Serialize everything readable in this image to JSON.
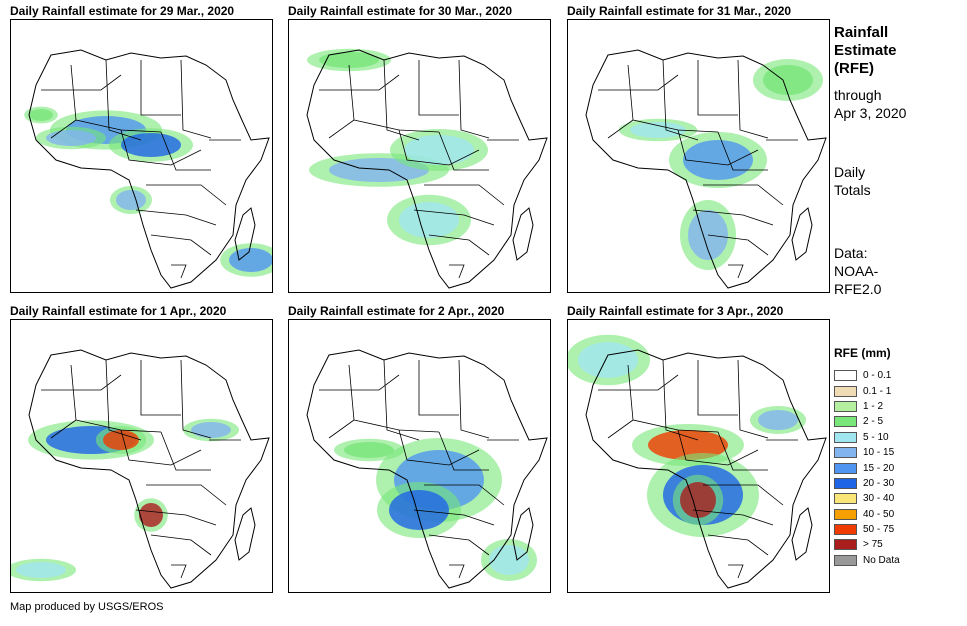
{
  "panels": [
    {
      "title": "Daily Rainfall estimate for 29 Mar., 2020"
    },
    {
      "title": "Daily Rainfall estimate for 30 Mar., 2020"
    },
    {
      "title": "Daily Rainfall estimate for 31 Mar., 2020"
    },
    {
      "title": "Daily Rainfall estimate for 1 Apr., 2020"
    },
    {
      "title": "Daily Rainfall estimate for 2 Apr., 2020"
    },
    {
      "title": "Daily Rainfall estimate for 3 Apr., 2020"
    }
  ],
  "sidebar": {
    "title": [
      "Rainfall",
      "Estimate",
      "(RFE)"
    ],
    "through": [
      "through",
      "Apr 3, 2020"
    ],
    "totals": [
      "Daily",
      "Totals"
    ],
    "data": [
      "Data:",
      "NOAA-",
      "RFE2.0"
    ]
  },
  "legend": {
    "title": "RFE (mm)",
    "items": [
      {
        "label": "0 - 0.1",
        "color": "#ffffff"
      },
      {
        "label": "0.1 - 1",
        "color": "#f0dcb4"
      },
      {
        "label": "1 - 2",
        "color": "#b4f0a0"
      },
      {
        "label": "2 - 5",
        "color": "#78e678"
      },
      {
        "label": "5 - 10",
        "color": "#a0e6f0"
      },
      {
        "label": "10 - 15",
        "color": "#82b4f0"
      },
      {
        "label": "15 - 20",
        "color": "#5096f0"
      },
      {
        "label": "20 - 30",
        "color": "#1e64e6"
      },
      {
        "label": "30 - 40",
        "color": "#fae678"
      },
      {
        "label": "40 - 50",
        "color": "#f5a000"
      },
      {
        "label": "50 - 75",
        "color": "#f03c00"
      },
      {
        "label": "> 75",
        "color": "#aa1e1e"
      },
      {
        "label": "No Data",
        "color": "#999999"
      }
    ]
  },
  "credit": "Map produced by USGS/EROS"
}
